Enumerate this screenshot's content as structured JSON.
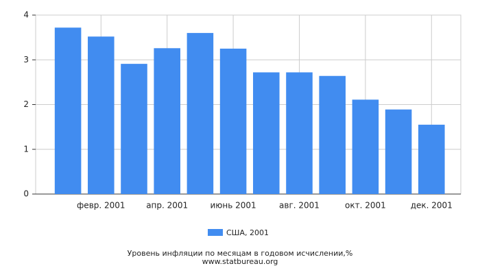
{
  "chart_data": {
    "type": "bar",
    "title": "Уровень инфляции по месяцам в годовом исчислении,%",
    "source": "www.statbureau.org",
    "categories": [
      null,
      "февр. 2001",
      null,
      "апр. 2001",
      null,
      "июнь 2001",
      null,
      "авг. 2001",
      null,
      "окт. 2001",
      null,
      "дек. 2001"
    ],
    "series": [
      {
        "name": "США, 2001",
        "color": "#418cf0",
        "values": [
          3.72,
          3.52,
          2.91,
          3.26,
          3.6,
          3.25,
          2.72,
          2.72,
          2.64,
          2.11,
          1.89,
          1.55
        ]
      }
    ],
    "ylim": [
      0,
      4
    ],
    "yticks": [
      0,
      1,
      2,
      3,
      4
    ],
    "grid": true
  }
}
